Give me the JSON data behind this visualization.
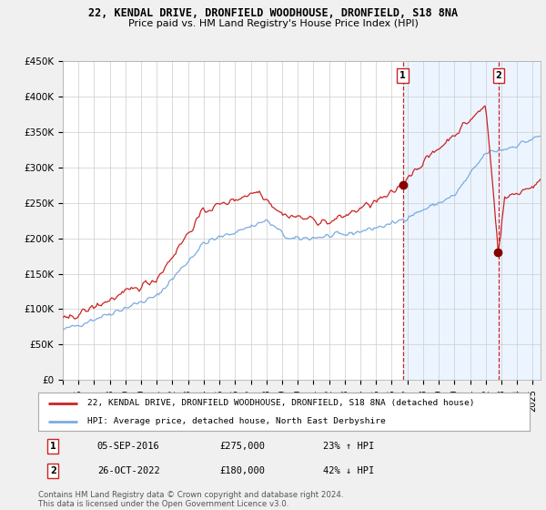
{
  "title": "22, KENDAL DRIVE, DRONFIELD WOODHOUSE, DRONFIELD, S18 8NA",
  "subtitle": "Price paid vs. HM Land Registry's House Price Index (HPI)",
  "ylabel_ticks": [
    "£0",
    "£50K",
    "£100K",
    "£150K",
    "£200K",
    "£250K",
    "£300K",
    "£350K",
    "£400K",
    "£450K"
  ],
  "ytick_values": [
    0,
    50000,
    100000,
    150000,
    200000,
    250000,
    300000,
    350000,
    400000,
    450000
  ],
  "ylim": [
    0,
    450000
  ],
  "xlim_start": 1995.0,
  "xlim_end": 2025.5,
  "marker1_x": 2016.7,
  "marker1_y": 275000,
  "marker1_label": "1",
  "marker2_x": 2022.82,
  "marker2_y": 180000,
  "marker2_label": "2",
  "vline1_x": 2016.7,
  "vline2_x": 2022.82,
  "legend_line1": "22, KENDAL DRIVE, DRONFIELD WOODHOUSE, DRONFIELD, S18 8NA (detached house)",
  "legend_line2": "HPI: Average price, detached house, North East Derbyshire",
  "annotation1_date": "05-SEP-2016",
  "annotation1_price": "£275,000",
  "annotation1_hpi": "23% ↑ HPI",
  "annotation2_date": "26-OCT-2022",
  "annotation2_price": "£180,000",
  "annotation2_hpi": "42% ↓ HPI",
  "footnote": "Contains HM Land Registry data © Crown copyright and database right 2024.\nThis data is licensed under the Open Government Licence v3.0.",
  "line_color_red": "#cc2222",
  "line_color_blue": "#7aabe0",
  "vline_color": "#cc2222",
  "shade_color": "#ddeeff",
  "background_color": "#f0f0f0",
  "plot_background": "#ffffff",
  "dot_color": "#880000"
}
